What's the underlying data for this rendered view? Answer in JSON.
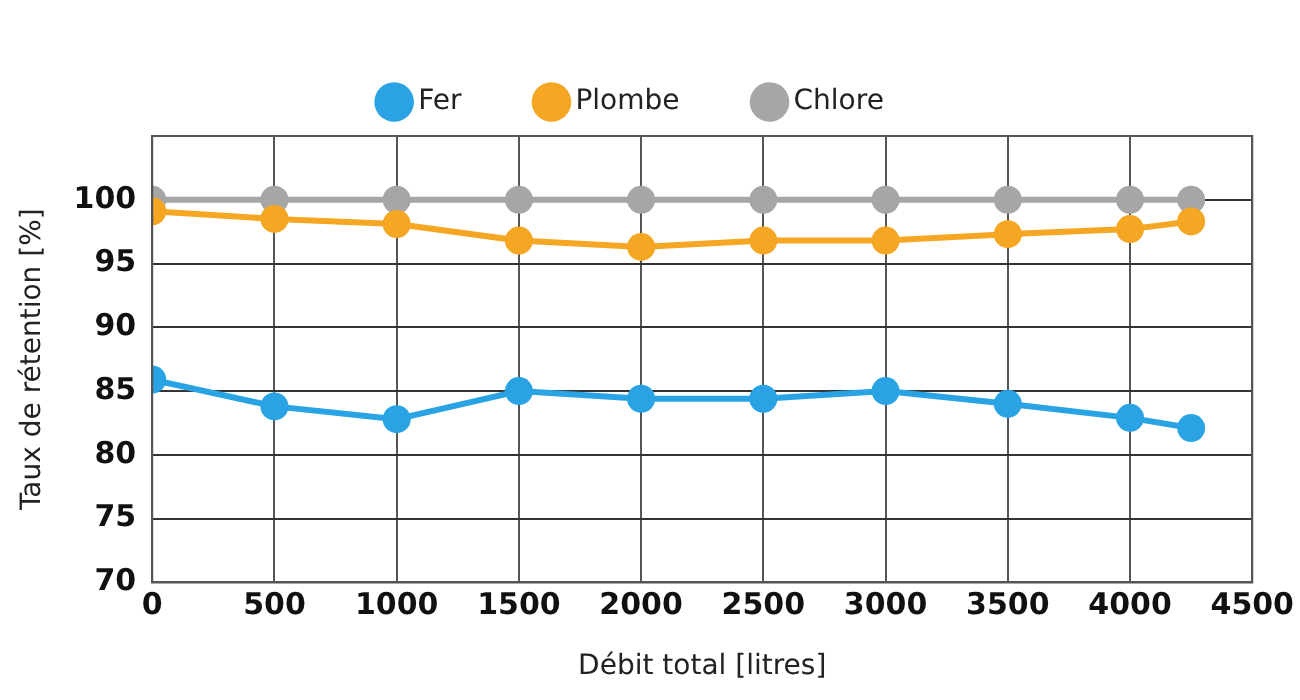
{
  "chart_data": {
    "type": "line",
    "xlabel": "Débit total [litres]",
    "ylabel": "Taux de rétention [%]",
    "x": [
      0,
      500,
      1000,
      1500,
      2000,
      2500,
      3000,
      3500,
      4000,
      4250
    ],
    "series": [
      {
        "name": "Fer",
        "color": "#29a3e3",
        "values": [
          85.9,
          83.8,
          82.8,
          85,
          84.4,
          84.4,
          85,
          84,
          82.9,
          82.1
        ]
      },
      {
        "name": "Plombe",
        "color": "#f5a623",
        "values": [
          99.1,
          98.5,
          98.1,
          96.8,
          96.3,
          96.8,
          96.8,
          97.3,
          97.7,
          98.3
        ]
      },
      {
        "name": "Chlore",
        "color": "#a6a6a6",
        "values": [
          100,
          100,
          100,
          100,
          100,
          100,
          100,
          100,
          100,
          100
        ]
      }
    ],
    "xlim": [
      0,
      4500
    ],
    "xticks": [
      0,
      500,
      1000,
      1500,
      2000,
      2500,
      3000,
      3500,
      4000,
      4500
    ],
    "ylim": [
      70,
      105
    ],
    "yticks": [
      70,
      75,
      80,
      85,
      90,
      95,
      100
    ],
    "grid": true,
    "legend": "top",
    "marker": "circle",
    "line_style": "solid"
  }
}
